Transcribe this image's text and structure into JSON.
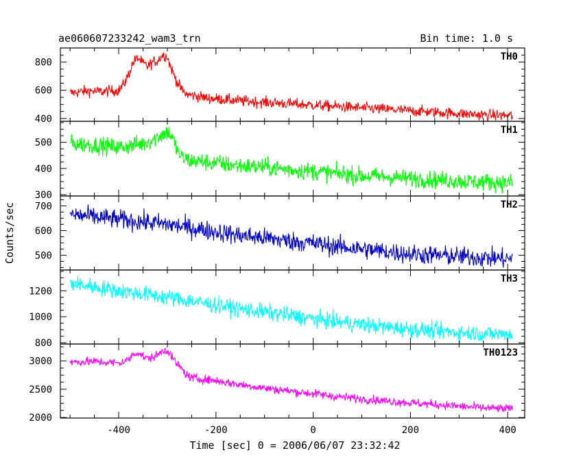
{
  "chart_data": {
    "type": "line",
    "title": "ae060607233242_wam3_trn",
    "subtitle": "Bin time: 1.0 s",
    "xlabel": "Time [sec] 0 = 2006/06/07 23:32:42",
    "ylabel": "Counts/sec",
    "xlim": [
      -520,
      435
    ],
    "x_ticks": [
      -400,
      -200,
      0,
      200,
      400
    ],
    "grid": false,
    "legend": "none",
    "panels": [
      {
        "name": "TH0",
        "color": "#ff0000",
        "ylim": [
          380,
          900
        ],
        "y_ticks": [
          400,
          600,
          800
        ],
        "x": [
          -500,
          -480,
          -460,
          -440,
          -420,
          -400,
          -390,
          -380,
          -370,
          -360,
          -350,
          -340,
          -330,
          -320,
          -310,
          -300,
          -295,
          -290,
          -280,
          -270,
          -260,
          -240,
          -220,
          -200,
          -150,
          -100,
          -50,
          0,
          50,
          100,
          150,
          200,
          250,
          300,
          350,
          410
        ],
        "values": [
          580,
          590,
          595,
          590,
          595,
          600,
          640,
          710,
          800,
          830,
          790,
          770,
          800,
          810,
          850,
          840,
          780,
          740,
          660,
          600,
          570,
          560,
          545,
          540,
          525,
          515,
          505,
          495,
          485,
          475,
          465,
          455,
          445,
          435,
          425,
          420
        ],
        "noise": 28
      },
      {
        "name": "TH1",
        "color": "#00ff00",
        "ylim": [
          295,
          580
        ],
        "y_ticks": [
          300,
          400,
          500
        ],
        "x": [
          -500,
          -450,
          -400,
          -350,
          -330,
          -310,
          -300,
          -290,
          -280,
          -270,
          -250,
          -200,
          -150,
          -100,
          -50,
          0,
          50,
          100,
          150,
          200,
          250,
          300,
          350,
          410
        ],
        "values": [
          495,
          490,
          480,
          495,
          510,
          530,
          540,
          520,
          470,
          440,
          430,
          420,
          410,
          405,
          395,
          390,
          380,
          372,
          368,
          362,
          358,
          352,
          348,
          345
        ],
        "noise": 24
      },
      {
        "name": "TH2",
        "color": "#0000cd",
        "ylim": [
          440,
          740
        ],
        "y_ticks": [
          500,
          600,
          700
        ],
        "x": [
          -500,
          -450,
          -400,
          -350,
          -300,
          -250,
          -200,
          -150,
          -100,
          -50,
          0,
          50,
          100,
          150,
          200,
          250,
          300,
          350,
          410
        ],
        "values": [
          665,
          655,
          645,
          635,
          625,
          610,
          595,
          580,
          570,
          558,
          548,
          535,
          525,
          515,
          505,
          500,
          495,
          490,
          485
        ],
        "noise": 28
      },
      {
        "name": "TH3",
        "color": "#00ffff",
        "ylim": [
          790,
          1360
        ],
        "y_ticks": [
          800,
          1000,
          1200
        ],
        "x": [
          -500,
          -450,
          -400,
          -350,
          -300,
          -250,
          -200,
          -150,
          -100,
          -50,
          0,
          50,
          100,
          150,
          200,
          250,
          300,
          350,
          410
        ],
        "values": [
          1260,
          1230,
          1200,
          1175,
          1150,
          1120,
          1090,
          1060,
          1035,
          1010,
          985,
          960,
          940,
          920,
          905,
          890,
          880,
          870,
          865
        ],
        "noise": 45
      },
      {
        "name": "TH0123",
        "color": "#ff00ff",
        "ylim": [
          1990,
          3300
        ],
        "y_ticks": [
          2000,
          2500,
          3000
        ],
        "x": [
          -500,
          -450,
          -400,
          -380,
          -370,
          -360,
          -350,
          -340,
          -320,
          -310,
          -300,
          -295,
          -290,
          -280,
          -270,
          -260,
          -250,
          -200,
          -150,
          -100,
          -50,
          0,
          50,
          100,
          150,
          200,
          250,
          300,
          350,
          410
        ],
        "values": [
          2980,
          2990,
          2960,
          3020,
          3120,
          3150,
          3080,
          3040,
          3100,
          3180,
          3190,
          3150,
          3050,
          2950,
          2850,
          2750,
          2700,
          2650,
          2580,
          2520,
          2470,
          2420,
          2370,
          2330,
          2290,
          2260,
          2230,
          2200,
          2170,
          2150
        ],
        "noise": 55
      }
    ]
  }
}
